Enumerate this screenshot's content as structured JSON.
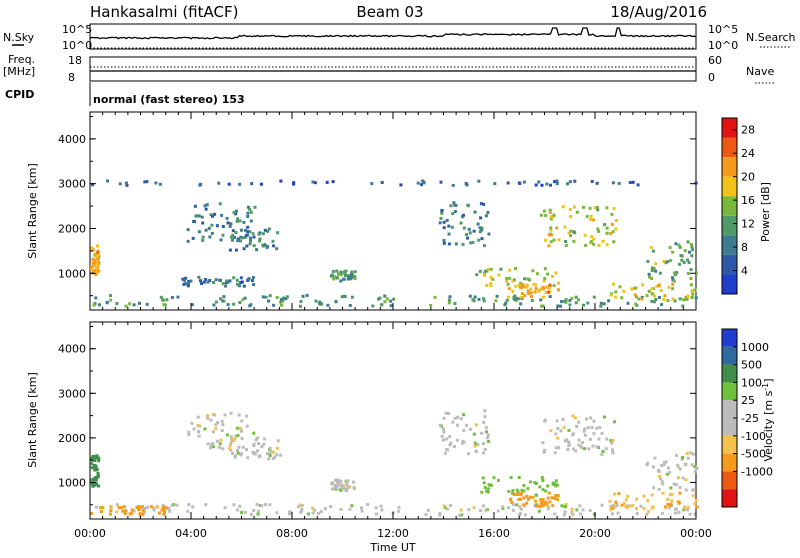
{
  "header": {
    "station": "Hankasalmi (fitACF)",
    "beam": "Beam 03",
    "date": "18/Aug/2016"
  },
  "strip": {
    "nsky_label": "N.Sky",
    "nsky_ticks": [
      "10^5",
      "10^0"
    ],
    "nsearch_ticks": [
      "10^5",
      "10^0"
    ],
    "nsearch_label": "N.Search",
    "freq_label_1": "Freq.",
    "freq_label_2": "[MHz]",
    "freq_ticks": [
      "18",
      "8"
    ],
    "nave_ticks": [
      "60",
      "0"
    ],
    "nave_label": "Nave",
    "cpid_label": "CPID",
    "cpid_text": "normal (fast stereo) 153"
  },
  "x_axis": {
    "title": "Time UT",
    "tick_labels": [
      "00:00",
      "04:00",
      "08:00",
      "12:00",
      "16:00",
      "20:00",
      "00:00"
    ],
    "range_hours": [
      0,
      24
    ]
  },
  "colors": {
    "power_scale": [
      "#1f3ecc",
      "#2d5aa8",
      "#3f7b8f",
      "#4f9a66",
      "#78b83b",
      "#f2c21b",
      "#f59a1a",
      "#ee5a14",
      "#e01414"
    ],
    "velocity_scale": [
      "#e01414",
      "#ee5a14",
      "#f59a1a",
      "#f4c14d",
      "#bcbcbc",
      "#bcbcbc",
      "#6ec23b",
      "#3f8f4a",
      "#2d6aa0",
      "#1f3ecc"
    ],
    "ground_scatter": "#bcbcbc"
  },
  "chart_data": [
    {
      "type": "heatmap",
      "name": "power",
      "ylabel": "Slant Range [km]",
      "y_ticks": [
        "1000",
        "2000",
        "3000",
        "4000"
      ],
      "ylim": [
        180,
        4600
      ],
      "colorbar_title": "Power [dB]",
      "colorbar_ticks": [
        "4",
        "8",
        "12",
        "16",
        "20",
        "24",
        "28"
      ],
      "colorbar_range": [
        0,
        30
      ],
      "echo_regions": [
        {
          "t": [
            0.0,
            0.3
          ],
          "r": [
            900,
            1600
          ],
          "value": 20
        },
        {
          "t": [
            0.0,
            24.0
          ],
          "r": [
            250,
            500
          ],
          "value": 11
        },
        {
          "t": [
            3.8,
            6.5
          ],
          "r": [
            1700,
            2550
          ],
          "value": 8
        },
        {
          "t": [
            5.5,
            7.5
          ],
          "r": [
            1500,
            2000
          ],
          "value": 9
        },
        {
          "t": [
            3.5,
            6.5
          ],
          "r": [
            700,
            900
          ],
          "value": 7
        },
        {
          "t": [
            9.5,
            10.5
          ],
          "r": [
            800,
            1050
          ],
          "value": 12
        },
        {
          "t": [
            13.8,
            15.8
          ],
          "r": [
            1600,
            2600
          ],
          "value": 9
        },
        {
          "t": [
            15.2,
            18.5
          ],
          "r": [
            700,
            1100
          ],
          "value": 16
        },
        {
          "t": [
            16.5,
            18.5
          ],
          "r": [
            450,
            750
          ],
          "value": 20
        },
        {
          "t": [
            17.8,
            20.8
          ],
          "r": [
            1600,
            2500
          ],
          "value": 17
        },
        {
          "t": [
            20.5,
            24.0
          ],
          "r": [
            400,
            750
          ],
          "value": 18
        },
        {
          "t": [
            22.0,
            24.0
          ],
          "r": [
            800,
            1700
          ],
          "value": 13
        },
        {
          "t": [
            0.0,
            24.0
          ],
          "r": [
            2950,
            3050
          ],
          "value": 6
        }
      ]
    },
    {
      "type": "heatmap",
      "name": "velocity",
      "ylabel": "Slant Range [km]",
      "y_ticks": [
        "1000",
        "2000",
        "3000",
        "4000"
      ],
      "ylim": [
        180,
        4600
      ],
      "colorbar_title": "Velocity [m s^-1]",
      "colorbar_ticks": [
        "1000",
        "500",
        "100",
        "25",
        "-25",
        "-100",
        "-500",
        "-1000"
      ],
      "echo_regions": [
        {
          "t": [
            0.0,
            0.3
          ],
          "r": [
            900,
            1600
          ],
          "value": 300
        },
        {
          "t": [
            0.0,
            24.0
          ],
          "r": [
            250,
            500
          ],
          "value": 0
        },
        {
          "t": [
            0.0,
            3.0
          ],
          "r": [
            250,
            450
          ],
          "value": -150
        },
        {
          "t": [
            3.8,
            6.5
          ],
          "r": [
            1700,
            2550
          ],
          "value": 0
        },
        {
          "t": [
            5.5,
            7.5
          ],
          "r": [
            1500,
            2000
          ],
          "value": 0
        },
        {
          "t": [
            9.5,
            10.5
          ],
          "r": [
            800,
            1050
          ],
          "value": 0
        },
        {
          "t": [
            13.8,
            15.8
          ],
          "r": [
            1600,
            2600
          ],
          "value": 0
        },
        {
          "t": [
            15.2,
            18.5
          ],
          "r": [
            700,
            1100
          ],
          "value": 60
        },
        {
          "t": [
            16.5,
            18.5
          ],
          "r": [
            450,
            750
          ],
          "value": -200
        },
        {
          "t": [
            17.8,
            20.8
          ],
          "r": [
            1600,
            2500
          ],
          "value": 0
        },
        {
          "t": [
            20.5,
            24.0
          ],
          "r": [
            400,
            750
          ],
          "value": -80
        },
        {
          "t": [
            22.0,
            24.0
          ],
          "r": [
            800,
            1700
          ],
          "value": 0
        }
      ]
    }
  ]
}
